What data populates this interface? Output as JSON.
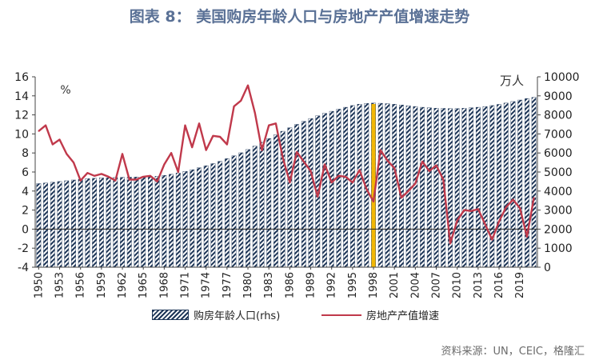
{
  "title": "图表 8：  美国购房年龄人口与房地产产值增速走势",
  "source": "资料来源：UN，CEIC，格隆汇",
  "chart_data": {
    "type": "bar+line",
    "left_axis": {
      "ylim": [
        -4,
        16
      ],
      "ticks": [
        -4,
        -2,
        0,
        2,
        4,
        6,
        8,
        10,
        12,
        14,
        16
      ],
      "label": "%"
    },
    "right_axis": {
      "ylim": [
        0,
        10000
      ],
      "ticks": [
        0,
        1000,
        2000,
        3000,
        4000,
        5000,
        6000,
        7000,
        8000,
        9000,
        10000
      ],
      "label": "万人"
    },
    "x_tick_labels": [
      "1950",
      "1953",
      "1956",
      "1959",
      "1962",
      "1965",
      "1968",
      "1971",
      "1974",
      "1977",
      "1980",
      "1983",
      "1986",
      "1989",
      "1992",
      "1995",
      "1998",
      "2001",
      "2004",
      "2007",
      "2010",
      "2013",
      "2016",
      "2019"
    ],
    "years": [
      1950,
      1951,
      1952,
      1953,
      1954,
      1955,
      1956,
      1957,
      1958,
      1959,
      1960,
      1961,
      1962,
      1963,
      1964,
      1965,
      1966,
      1967,
      1968,
      1969,
      1970,
      1971,
      1972,
      1973,
      1974,
      1975,
      1976,
      1977,
      1978,
      1979,
      1980,
      1981,
      1982,
      1983,
      1984,
      1985,
      1986,
      1987,
      1988,
      1989,
      1990,
      1991,
      1992,
      1993,
      1994,
      1995,
      1996,
      1997,
      1998,
      1999,
      2000,
      2001,
      2002,
      2003,
      2004,
      2005,
      2006,
      2007,
      2008,
      2009,
      2010,
      2011,
      2012,
      2013,
      2014,
      2015,
      2016,
      2017,
      2018,
      2019,
      2020,
      2021
    ],
    "series": [
      {
        "name": "购房年龄人口(rhs)",
        "type": "bar",
        "axis": "right",
        "values": [
          4390,
          4420,
          4460,
          4500,
          4540,
          4580,
          4620,
          4650,
          4670,
          4690,
          4700,
          4710,
          4720,
          4730,
          4740,
          4750,
          4760,
          4780,
          4820,
          4880,
          4950,
          5030,
          5120,
          5220,
          5330,
          5440,
          5560,
          5700,
          5850,
          6010,
          6180,
          6360,
          6560,
          6760,
          6950,
          7140,
          7320,
          7500,
          7660,
          7810,
          7950,
          8080,
          8190,
          8300,
          8400,
          8490,
          8560,
          8600,
          8620,
          8610,
          8590,
          8560,
          8520,
          8480,
          8440,
          8400,
          8370,
          8350,
          8340,
          8330,
          8330,
          8350,
          8370,
          8400,
          8440,
          8490,
          8550,
          8620,
          8700,
          8780,
          8860,
          8920
        ]
      },
      {
        "name": "房地产产值增速",
        "type": "line",
        "axis": "left",
        "values": [
          10.3,
          10.9,
          8.9,
          9.4,
          7.9,
          7.0,
          5.1,
          5.9,
          5.6,
          5.8,
          5.5,
          5.1,
          7.9,
          5.2,
          5.2,
          5.5,
          5.6,
          5.0,
          6.8,
          8.0,
          6.0,
          10.9,
          8.6,
          11.1,
          8.3,
          9.8,
          9.7,
          8.9,
          12.9,
          13.5,
          15.1,
          12.2,
          8.3,
          10.9,
          11.1,
          7.5,
          4.9,
          8.1,
          7.1,
          6.1,
          3.4,
          6.8,
          4.9,
          5.6,
          5.5,
          4.9,
          6.2,
          4.2,
          2.9,
          8.3,
          7.2,
          6.4,
          3.3,
          4.0,
          4.8,
          7.1,
          6.1,
          6.7,
          5.2,
          -1.5,
          0.9,
          2.0,
          1.9,
          2.1,
          0.5,
          -1.1,
          0.8,
          2.3,
          3.1,
          2.2,
          -0.8,
          3.3
        ]
      }
    ],
    "highlight_year": 1998,
    "legend_position": "bottom"
  }
}
